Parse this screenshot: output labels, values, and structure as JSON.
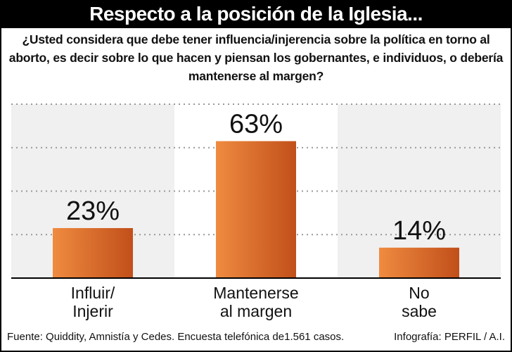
{
  "title": "Respecto a la posición de la Iglesia...",
  "question": "¿Usted considera que debe tener influencia/injerencia sobre la política en torno al aborto, es decir sobre lo que hacen y piensan los gobernantes, e individuos, o debería mantenerse al margen?",
  "source": "Fuente: Quiddity, Amnistía y Cedes. Encuesta telefónica de1.561 casos.",
  "credit": "Infografía: PERFIL / A.I.",
  "chart_data": {
    "type": "bar",
    "categories": [
      [
        "Influir/",
        "Injerir"
      ],
      [
        "Mantenerse",
        "al margen"
      ],
      [
        "No",
        "sabe"
      ]
    ],
    "values": [
      23,
      63,
      14
    ],
    "value_labels": [
      "23%",
      "63%",
      "14%"
    ],
    "ylim": [
      0,
      80
    ],
    "grid": true,
    "colors": {
      "bar_light": "#ef8b40",
      "bar_dark": "#c14f1a",
      "panel": "#f0f0f0",
      "grid": "#999999"
    }
  }
}
